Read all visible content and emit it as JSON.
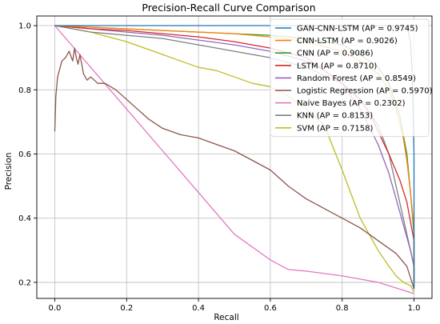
{
  "chart_data": {
    "type": "line",
    "title": "Precision-Recall Curve Comparison",
    "xlabel": "Recall",
    "ylabel": "Precision",
    "xlim": [
      -0.05,
      1.05
    ],
    "ylim": [
      0.15,
      1.03
    ],
    "xticks": [
      0.0,
      0.2,
      0.4,
      0.6,
      0.8,
      1.0
    ],
    "xtick_labels": [
      "0.0",
      "0.2",
      "0.4",
      "0.6",
      "0.8",
      "1.0"
    ],
    "yticks": [
      0.2,
      0.4,
      0.6,
      0.8,
      1.0
    ],
    "ytick_labels": [
      "0.2",
      "0.4",
      "0.6",
      "0.8",
      "1.0"
    ],
    "grid": true,
    "legend_position": "top-right",
    "series": [
      {
        "name": "GAN-CNN-LSTM (AP = 0.9745)",
        "color": "#1f77b4",
        "x": [
          0.0,
          0.2,
          0.4,
          0.6,
          0.8,
          0.9,
          0.95,
          0.98,
          0.99,
          0.995,
          1.0,
          1.0
        ],
        "y": [
          1.0,
          1.0,
          1.0,
          1.0,
          1.0,
          1.0,
          1.0,
          1.0,
          0.95,
          0.85,
          0.6,
          0.18
        ]
      },
      {
        "name": "CNN-LSTM (AP = 0.9026)",
        "color": "#ff7f0e",
        "x": [
          0.0,
          0.1,
          0.2,
          0.3,
          0.4,
          0.5,
          0.6,
          0.7,
          0.8,
          0.85,
          0.9,
          0.93,
          0.95,
          0.97,
          0.98,
          0.99,
          1.0,
          1.0
        ],
        "y": [
          1.0,
          0.995,
          0.99,
          0.985,
          0.98,
          0.975,
          0.965,
          0.95,
          0.92,
          0.89,
          0.85,
          0.8,
          0.74,
          0.65,
          0.58,
          0.48,
          0.37,
          0.2
        ]
      },
      {
        "name": "CNN (AP = 0.9086)",
        "color": "#2ca02c",
        "x": [
          0.0,
          0.1,
          0.2,
          0.3,
          0.4,
          0.5,
          0.6,
          0.7,
          0.8,
          0.85,
          0.9,
          0.93,
          0.96,
          0.98,
          0.99,
          1.0,
          1.0
        ],
        "y": [
          1.0,
          0.995,
          0.99,
          0.985,
          0.98,
          0.975,
          0.97,
          0.96,
          0.94,
          0.91,
          0.87,
          0.82,
          0.72,
          0.6,
          0.48,
          0.35,
          0.2
        ]
      },
      {
        "name": "LSTM (AP = 0.8710)",
        "color": "#d62728",
        "x": [
          0.0,
          0.1,
          0.2,
          0.3,
          0.4,
          0.5,
          0.6,
          0.7,
          0.75,
          0.8,
          0.85,
          0.88,
          0.9,
          0.93,
          0.96,
          0.98,
          1.0,
          1.0
        ],
        "y": [
          1.0,
          0.99,
          0.985,
          0.975,
          0.965,
          0.95,
          0.93,
          0.9,
          0.86,
          0.82,
          0.77,
          0.72,
          0.67,
          0.6,
          0.52,
          0.45,
          0.33,
          0.2
        ]
      },
      {
        "name": "Random Forest (AP = 0.8549)",
        "color": "#9467bd",
        "x": [
          0.0,
          0.1,
          0.2,
          0.3,
          0.4,
          0.5,
          0.6,
          0.7,
          0.75,
          0.8,
          0.85,
          0.9,
          0.93,
          0.95,
          0.97,
          0.99,
          1.0,
          1.0
        ],
        "y": [
          1.0,
          0.99,
          0.98,
          0.97,
          0.955,
          0.94,
          0.92,
          0.89,
          0.86,
          0.82,
          0.74,
          0.63,
          0.54,
          0.46,
          0.38,
          0.3,
          0.25,
          0.18
        ]
      },
      {
        "name": "Logistic Regression (AP = 0.5970)",
        "color": "#8c564b",
        "x": [
          0.0,
          0.003,
          0.008,
          0.015,
          0.02,
          0.03,
          0.04,
          0.05,
          0.055,
          0.06,
          0.065,
          0.07,
          0.08,
          0.09,
          0.1,
          0.12,
          0.14,
          0.17,
          0.2,
          0.23,
          0.26,
          0.3,
          0.35,
          0.4,
          0.45,
          0.5,
          0.55,
          0.6,
          0.65,
          0.7,
          0.75,
          0.8,
          0.85,
          0.9,
          0.95,
          0.98,
          1.0
        ],
        "y": [
          0.67,
          0.78,
          0.84,
          0.87,
          0.89,
          0.9,
          0.92,
          0.89,
          0.93,
          0.9,
          0.88,
          0.91,
          0.85,
          0.83,
          0.84,
          0.82,
          0.82,
          0.8,
          0.77,
          0.74,
          0.71,
          0.68,
          0.66,
          0.65,
          0.63,
          0.61,
          0.58,
          0.55,
          0.5,
          0.46,
          0.43,
          0.4,
          0.37,
          0.33,
          0.29,
          0.25,
          0.18
        ]
      },
      {
        "name": "Naive Bayes (AP = 0.2302)",
        "color": "#e377c2",
        "x": [
          0.0,
          0.1,
          0.2,
          0.3,
          0.4,
          0.5,
          0.6,
          0.65,
          0.7,
          0.8,
          0.9,
          1.0
        ],
        "y": [
          1.0,
          0.87,
          0.74,
          0.61,
          0.48,
          0.35,
          0.27,
          0.24,
          0.235,
          0.22,
          0.2,
          0.165
        ]
      },
      {
        "name": "KNN (AP = 0.8153)",
        "color": "#7f7f7f",
        "x": [
          0.0,
          0.1,
          0.2,
          0.3,
          0.4,
          0.5,
          0.6,
          0.7,
          0.8,
          0.85,
          0.9,
          0.93,
          0.95,
          0.97,
          0.99,
          1.0,
          1.0
        ],
        "y": [
          1.0,
          0.98,
          0.97,
          0.96,
          0.94,
          0.92,
          0.9,
          0.87,
          0.82,
          0.77,
          0.69,
          0.6,
          0.5,
          0.4,
          0.3,
          0.25,
          0.18
        ]
      },
      {
        "name": "SVM (AP = 0.7158)",
        "color": "#bcbd22",
        "x": [
          0.0,
          0.05,
          0.1,
          0.15,
          0.2,
          0.25,
          0.3,
          0.35,
          0.4,
          0.45,
          0.5,
          0.55,
          0.6,
          0.65,
          0.7,
          0.75,
          0.8,
          0.85,
          0.9,
          0.93,
          0.95,
          0.97,
          0.99,
          1.0
        ],
        "y": [
          1.0,
          0.99,
          0.98,
          0.965,
          0.95,
          0.93,
          0.91,
          0.89,
          0.87,
          0.86,
          0.84,
          0.82,
          0.81,
          0.78,
          0.74,
          0.69,
          0.55,
          0.4,
          0.3,
          0.25,
          0.22,
          0.2,
          0.19,
          0.17
        ]
      }
    ]
  }
}
